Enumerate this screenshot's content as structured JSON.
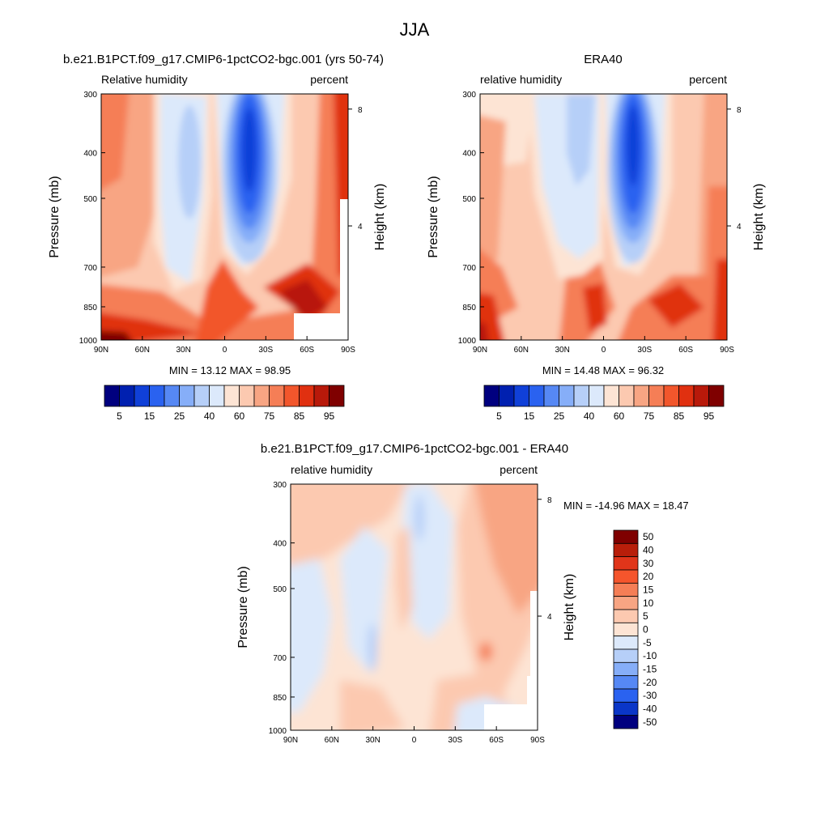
{
  "figure": {
    "title": "JJA"
  },
  "chart_data": [
    {
      "type": "heatmap",
      "title": "b.e21.B1PCT.f09_g17.CMIP6-1pctCO2-bgc.001 (yrs 50-74)",
      "left_label": "Relative humidity",
      "right_label": "percent",
      "ylabel": "Pressure (mb)",
      "ylabel_right": "Height (km)",
      "x_ticks": [
        "90N",
        "60N",
        "30N",
        "0",
        "30S",
        "60S",
        "90S"
      ],
      "y_ticks": [
        "300",
        "400",
        "500",
        "700",
        "850",
        "1000"
      ],
      "y2_ticks": [
        "8",
        "4"
      ],
      "ylim": [
        1000,
        300
      ],
      "xlim": [
        "90N",
        "90S"
      ],
      "stats": "MIN = 13.12  MAX = 98.95",
      "min": 13.12,
      "max": 98.95,
      "legend_ticks": [
        "5",
        "15",
        "25",
        "40",
        "60",
        "75",
        "85",
        "95"
      ],
      "legend_placement": "bottom"
    },
    {
      "type": "heatmap",
      "title": "ERA40",
      "left_label": "relative humidity",
      "right_label": "percent",
      "ylabel": "Pressure (mb)",
      "ylabel_right": "Height (km)",
      "x_ticks": [
        "90N",
        "60N",
        "30N",
        "0",
        "30S",
        "60S",
        "90S"
      ],
      "y_ticks": [
        "300",
        "400",
        "500",
        "700",
        "850",
        "1000"
      ],
      "y2_ticks": [
        "8",
        "4"
      ],
      "ylim": [
        1000,
        300
      ],
      "xlim": [
        "90N",
        "90S"
      ],
      "stats": "MIN = 14.48  MAX = 96.32",
      "min": 14.48,
      "max": 96.32,
      "legend_ticks": [
        "5",
        "15",
        "25",
        "40",
        "60",
        "75",
        "85",
        "95"
      ],
      "legend_placement": "bottom"
    },
    {
      "type": "heatmap",
      "title": "b.e21.B1PCT.f09_g17.CMIP6-1pctCO2-bgc.001 - ERA40",
      "left_label": "relative humidity",
      "right_label": "percent",
      "ylabel": "Pressure (mb)",
      "ylabel_right": "Height (km)",
      "x_ticks": [
        "90N",
        "60N",
        "30N",
        "0",
        "30S",
        "60S",
        "90S"
      ],
      "y_ticks": [
        "300",
        "400",
        "500",
        "700",
        "850",
        "1000"
      ],
      "y2_ticks": [
        "8",
        "4"
      ],
      "ylim": [
        1000,
        300
      ],
      "xlim": [
        "90N",
        "90S"
      ],
      "stats": "MIN = -14.96  MAX =  18.47",
      "min": -14.96,
      "max": 18.47,
      "legend_ticks": [
        "50",
        "40",
        "30",
        "20",
        "15",
        "10",
        "5",
        "0",
        "-5",
        "-10",
        "-15",
        "-20",
        "-30",
        "-40",
        "-50"
      ],
      "legend_placement": "right"
    }
  ],
  "colors": {
    "abs_scale": [
      "#00007f",
      "#0020b0",
      "#1040d8",
      "#2a62f0",
      "#5688f4",
      "#86aef8",
      "#b6cff8",
      "#dce9fb",
      "#fde4d4",
      "#fcc9b0",
      "#f8a583",
      "#f57e56",
      "#f2562c",
      "#e03010",
      "#b8190a",
      "#7f0000"
    ],
    "diff_scale": [
      "#7f0000",
      "#b81e0a",
      "#e0351a",
      "#f5552c",
      "#f57e56",
      "#f8a583",
      "#fcc9b0",
      "#fde4d4",
      "#dce9fb",
      "#b6cff8",
      "#86aef8",
      "#5688f4",
      "#2a62f0",
      "#0a36c8",
      "#00007f"
    ]
  }
}
